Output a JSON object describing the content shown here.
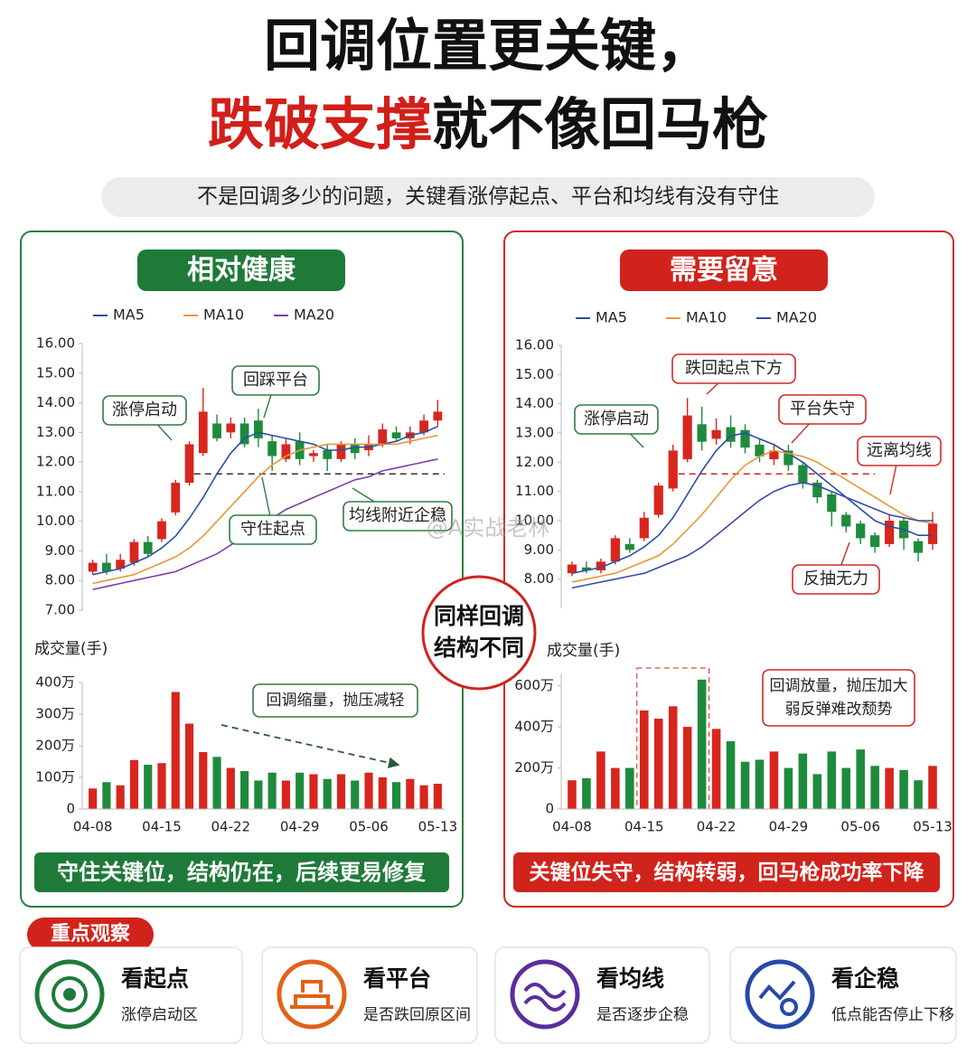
{
  "header": {
    "title_line1": "回调位置更关键，",
    "title_line2_red": "跌破支撑",
    "title_line2_black": "就不像回马枪",
    "subtitle": "不是回调多少的问题，关键看涨停起点、平台和均线有没有守住"
  },
  "panels": [
    {
      "badge": "相对健康",
      "conclusion": "守住关键位，结构仍在，后续更易修复"
    },
    {
      "badge": "需要留意",
      "conclusion": "关键位失守，结构转弱，回马枪成功率下降"
    }
  ],
  "center_badge": [
    "同样回调",
    "结构不同"
  ],
  "watermark": "@A实战老林",
  "chart_data": [
    {
      "type": "candlestick",
      "open": [
        8.3,
        8.6,
        8.4,
        8.6,
        9.3,
        9.4,
        10.3,
        11.3,
        12.3,
        13.3,
        13.0,
        13.3,
        13.4,
        12.7,
        12.1,
        12.7,
        12.2,
        12.4,
        12.1,
        12.6,
        12.4,
        12.6,
        13.0,
        12.8,
        13.0,
        13.4
      ],
      "close": [
        8.6,
        8.3,
        8.7,
        9.3,
        8.9,
        10.0,
        11.3,
        12.6,
        13.7,
        12.8,
        13.3,
        12.6,
        12.8,
        12.2,
        12.6,
        12.1,
        12.3,
        12.1,
        12.6,
        12.3,
        12.6,
        13.1,
        12.8,
        13.0,
        13.4,
        13.7
      ],
      "low": [
        8.2,
        8.2,
        8.3,
        8.5,
        8.8,
        9.3,
        10.2,
        11.2,
        12.2,
        12.7,
        12.8,
        12.5,
        12.5,
        11.7,
        12.0,
        11.9,
        12.0,
        11.7,
        12.0,
        12.1,
        12.2,
        12.5,
        12.7,
        12.6,
        12.9,
        13.2
      ],
      "high": [
        8.7,
        8.9,
        8.9,
        9.4,
        9.5,
        10.1,
        11.4,
        12.7,
        14.5,
        13.6,
        13.5,
        13.5,
        13.8,
        12.9,
        12.8,
        13.0,
        12.4,
        12.6,
        12.7,
        12.8,
        12.9,
        13.3,
        13.2,
        13.2,
        13.6,
        14.1
      ],
      "up_color": "#d7261e",
      "down_color": "#1e8b3c",
      "ylim": [
        7,
        16
      ],
      "yticks": [
        {
          "value": 16,
          "label": "16.00"
        },
        {
          "value": 15,
          "label": "15.00"
        },
        {
          "value": 14,
          "label": "14.00"
        },
        {
          "value": 13,
          "label": "13.00"
        },
        {
          "value": 12,
          "label": "12.00"
        },
        {
          "value": 11,
          "label": "11.00"
        },
        {
          "value": 10,
          "label": "10.00"
        },
        {
          "value": 9,
          "label": "9.00"
        },
        {
          "value": 8,
          "label": "8.00"
        },
        {
          "value": 7,
          "label": "7.00"
        }
      ],
      "series": [
        {
          "name": "MA5",
          "color": "#2b4fa6",
          "values": [
            8.2,
            8.3,
            8.4,
            8.6,
            8.8,
            9.1,
            9.5,
            10.1,
            10.8,
            11.6,
            12.3,
            12.8,
            13.0,
            12.9,
            12.8,
            12.7,
            12.6,
            12.4,
            12.4,
            12.5,
            12.5,
            12.6,
            12.7,
            12.9,
            13.0,
            13.2
          ]
        },
        {
          "name": "MA10",
          "color": "#e8973a",
          "values": [
            7.9,
            8.0,
            8.1,
            8.2,
            8.4,
            8.6,
            8.8,
            9.1,
            9.5,
            10.0,
            10.5,
            11.0,
            11.5,
            11.9,
            12.2,
            12.4,
            12.5,
            12.6,
            12.6,
            12.6,
            12.6,
            12.6,
            12.6,
            12.7,
            12.8,
            12.9
          ]
        },
        {
          "name": "MA20",
          "color": "#7a3ea8",
          "values": [
            7.7,
            7.8,
            7.9,
            8.0,
            8.1,
            8.2,
            8.3,
            8.5,
            8.7,
            8.9,
            9.2,
            9.5,
            9.8,
            10.1,
            10.4,
            10.6,
            10.8,
            11.0,
            11.2,
            11.4,
            11.5,
            11.7,
            11.8,
            11.9,
            12.0,
            12.1
          ]
        }
      ],
      "support_level": 11.6,
      "annotations": [
        "涨停启动",
        "回踩平台",
        "守住起点",
        "均线附近企稳"
      ]
    },
    {
      "type": "bar",
      "ylabel": "成交量(手)",
      "categories": [
        "04-08",
        null,
        null,
        null,
        null,
        "04-15",
        null,
        null,
        null,
        null,
        "04-22",
        null,
        null,
        null,
        null,
        "04-29",
        null,
        null,
        null,
        null,
        "05-06",
        null,
        null,
        null,
        null,
        "05-13"
      ],
      "values": [
        65,
        85,
        75,
        155,
        140,
        145,
        370,
        270,
        180,
        165,
        130,
        120,
        90,
        115,
        90,
        115,
        110,
        95,
        110,
        90,
        115,
        100,
        85,
        95,
        75,
        80
      ],
      "ylim": [
        0,
        400
      ],
      "yticks": [
        0,
        {
          "value": 100,
          "label": "100万"
        },
        {
          "value": 200,
          "label": "200万"
        },
        {
          "value": 300,
          "label": "300万"
        },
        {
          "value": 400,
          "label": "400万"
        }
      ],
      "annotations": [
        "回调缩量，抛压减轻"
      ]
    },
    {
      "type": "candlestick",
      "open": [
        8.2,
        8.4,
        8.3,
        8.6,
        9.2,
        9.4,
        10.2,
        11.1,
        12.1,
        13.3,
        12.8,
        13.2,
        13.1,
        12.6,
        12.1,
        12.4,
        11.9,
        11.3,
        10.9,
        10.2,
        9.9,
        9.5,
        9.2,
        10.0,
        9.3,
        9.2
      ],
      "close": [
        8.5,
        8.3,
        8.6,
        9.4,
        9.0,
        10.1,
        11.2,
        12.4,
        13.6,
        12.7,
        13.1,
        12.7,
        12.5,
        12.2,
        12.4,
        11.9,
        11.3,
        10.8,
        10.3,
        9.8,
        9.4,
        9.1,
        10.0,
        9.4,
        8.9,
        9.9
      ],
      "low": [
        8.1,
        8.2,
        8.2,
        8.5,
        8.9,
        9.3,
        10.1,
        11.0,
        12.0,
        12.4,
        12.6,
        12.5,
        12.3,
        12.0,
        11.9,
        11.7,
        11.1,
        10.6,
        9.8,
        9.6,
        9.2,
        8.9,
        9.1,
        9.0,
        8.6,
        9.0
      ],
      "high": [
        8.6,
        8.6,
        8.7,
        9.5,
        9.4,
        10.3,
        11.3,
        12.6,
        14.2,
        13.9,
        13.5,
        13.6,
        13.3,
        12.8,
        12.6,
        12.6,
        12.0,
        11.4,
        11.0,
        10.3,
        10.0,
        9.6,
        10.2,
        10.1,
        9.4,
        10.3
      ],
      "up_color": "#d7261e",
      "down_color": "#1e8b3c",
      "ylim": [
        7,
        16
      ],
      "yticks": [
        {
          "value": 16,
          "label": "16.00"
        },
        {
          "value": 15,
          "label": "15.00"
        },
        {
          "value": 14,
          "label": "14.00"
        },
        {
          "value": 13,
          "label": "13.00"
        },
        {
          "value": 12,
          "label": "12.00"
        },
        {
          "value": 11,
          "label": "11.00"
        },
        {
          "value": 10,
          "label": "10.00"
        },
        {
          "value": 9,
          "label": "9.00"
        },
        {
          "value": 8,
          "label": "8.00"
        }
      ],
      "series": [
        {
          "name": "MA5",
          "color": "#2b4fa6",
          "values": [
            8.2,
            8.3,
            8.4,
            8.6,
            8.8,
            9.1,
            9.5,
            10.1,
            10.9,
            11.7,
            12.4,
            12.9,
            13.0,
            12.8,
            12.6,
            12.3,
            12.0,
            11.6,
            11.2,
            10.8,
            10.4,
            10.0,
            9.8,
            9.7,
            9.5,
            9.5
          ]
        },
        {
          "name": "MA10",
          "color": "#e8973a",
          "values": [
            7.9,
            8.0,
            8.1,
            8.2,
            8.4,
            8.6,
            8.8,
            9.2,
            9.7,
            10.2,
            10.8,
            11.4,
            11.9,
            12.2,
            12.4,
            12.3,
            12.2,
            12.0,
            11.7,
            11.4,
            11.1,
            10.8,
            10.5,
            10.2,
            10.0,
            9.9
          ]
        },
        {
          "name": "MA20",
          "color": "#3a4aa8",
          "values": [
            7.7,
            7.8,
            7.9,
            8.0,
            8.1,
            8.2,
            8.4,
            8.6,
            8.8,
            9.1,
            9.5,
            9.9,
            10.3,
            10.7,
            11.0,
            11.2,
            11.3,
            11.2,
            11.0,
            10.8,
            10.6,
            10.4,
            10.2,
            10.1,
            10.0,
            10.0
          ]
        }
      ],
      "support_level": 11.6,
      "annotations": [
        "涨停启动",
        "跌回起点下方",
        "平台失守",
        "远离均线",
        "反抽无力"
      ]
    },
    {
      "type": "bar",
      "ylabel": "成交量(手)",
      "categories": [
        "04-08",
        null,
        null,
        null,
        null,
        "04-15",
        null,
        null,
        null,
        null,
        "04-22",
        null,
        null,
        null,
        null,
        "04-29",
        null,
        null,
        null,
        null,
        "05-06",
        null,
        null,
        null,
        null,
        "05-13"
      ],
      "values": [
        140,
        150,
        280,
        200,
        200,
        480,
        440,
        500,
        400,
        630,
        390,
        330,
        230,
        240,
        280,
        200,
        270,
        170,
        280,
        200,
        290,
        210,
        200,
        190,
        140,
        210
      ],
      "ylim": [
        0,
        660
      ],
      "yticks": [
        0,
        {
          "value": 200,
          "label": "200万"
        },
        {
          "value": 400,
          "label": "400万"
        },
        {
          "value": 600,
          "label": "600万"
        }
      ],
      "annotations": [
        "回调放量，抛压加大",
        "弱反弹难改颓势"
      ]
    }
  ],
  "focus": {
    "title": "重点观察",
    "items": [
      {
        "title": "看起点",
        "desc": "涨停启动区"
      },
      {
        "title": "看平台",
        "desc": "是否跌回原区间"
      },
      {
        "title": "看均线",
        "desc": "是否逐步企稳"
      },
      {
        "title": "看企稳",
        "desc": "低点能否停止下移"
      }
    ]
  }
}
